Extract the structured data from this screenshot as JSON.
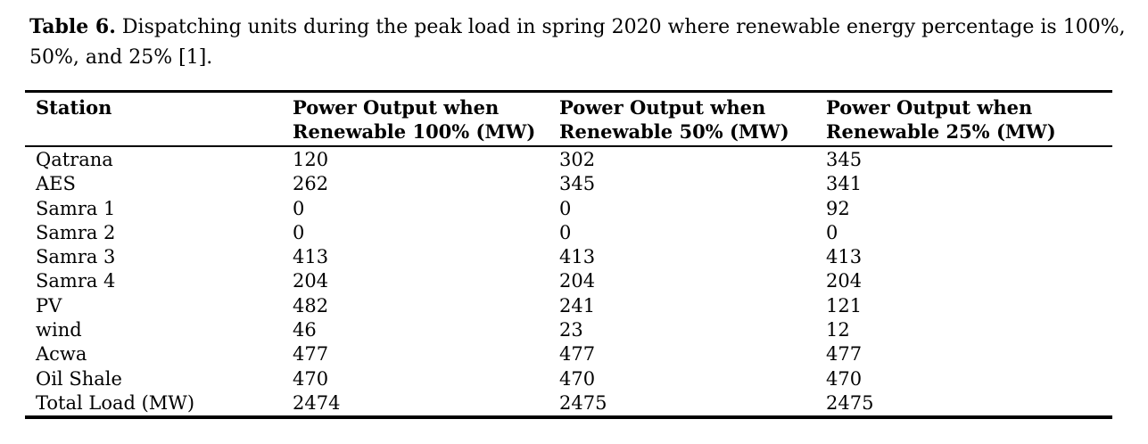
{
  "caption": {
    "bold_label": "Table 6.",
    "line1_rest": "Dispatching units during the peak load in spring 2020 where renewable energy percentage is",
    "line2": "100%, 50%, and 25% [1]."
  },
  "chart_data": {
    "type": "table",
    "title": "Table 6. Dispatching units during the peak load in spring 2020 where renewable energy percentage is 100%, 50%, and 25% [1].",
    "columns": [
      "Station",
      "Power Output when Renewable 100% (MW)",
      "Power Output when Renewable 50% (MW)",
      "Power Output when Renewable 25% (MW)"
    ],
    "rows": [
      [
        "Qatrana",
        "120",
        "302",
        "345"
      ],
      [
        "AES",
        "262",
        "345",
        "341"
      ],
      [
        "Samra 1",
        "0",
        "0",
        "92"
      ],
      [
        "Samra 2",
        "0",
        "0",
        "0"
      ],
      [
        "Samra 3",
        "413",
        "413",
        "413"
      ],
      [
        "Samra 4",
        "204",
        "204",
        "204"
      ],
      [
        "PV",
        "482",
        "241",
        "121"
      ],
      [
        "wind",
        "46",
        "23",
        "12"
      ],
      [
        "Acwa",
        "477",
        "477",
        "477"
      ],
      [
        "Oil Shale",
        "470",
        "470",
        "470"
      ],
      [
        "Total Load (MW)",
        "2474",
        "2475",
        "2475"
      ]
    ],
    "colors": {
      "text": "#000000",
      "background": "#ffffff",
      "rule": "#000000"
    }
  }
}
